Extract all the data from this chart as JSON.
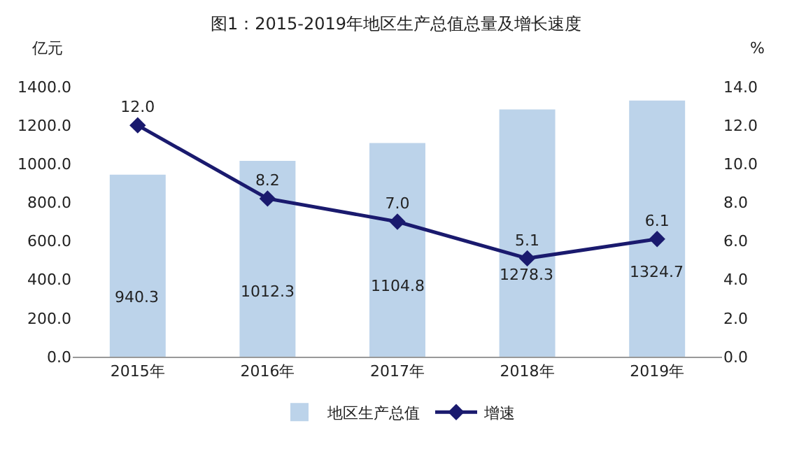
{
  "chart_data": {
    "type": "bar",
    "title": "图1：2015-2019年地区生产总值总量及增长速度",
    "categories": [
      "2015年",
      "2016年",
      "2017年",
      "2018年",
      "2019年"
    ],
    "series": [
      {
        "name": "地区生产总值",
        "color": "#bcd3ea",
        "values": [
          940.3,
          1012.3,
          1104.8,
          1278.3,
          1324.7
        ],
        "value_labels": [
          "940.3",
          "1012.3",
          "1104.8",
          "1278.3",
          "1324.7"
        ]
      },
      {
        "name": "增速",
        "type": "line",
        "axis": "y2",
        "color": "#1a1a6e",
        "marker": "diamond",
        "values": [
          12.0,
          8.2,
          7.0,
          5.1,
          6.1
        ],
        "value_labels": [
          "12.0",
          "8.2",
          "7.0",
          "5.1",
          "6.1"
        ]
      }
    ],
    "ylabel": "亿元",
    "y2label": "%",
    "ylim": [
      0,
      1400
    ],
    "yticks": [
      {
        "value": 0,
        "label": "0.0"
      },
      {
        "value": 200,
        "label": "200.0"
      },
      {
        "value": 400,
        "label": "400.0"
      },
      {
        "value": 600,
        "label": "600.0"
      },
      {
        "value": 800,
        "label": "800.0"
      },
      {
        "value": 1000,
        "label": "1000.0"
      },
      {
        "value": 1200,
        "label": "1200.0"
      },
      {
        "value": 1400,
        "label": "1400.0"
      }
    ],
    "y2lim": [
      0,
      14
    ],
    "y2ticks": [
      {
        "value": 0,
        "label": "0.0"
      },
      {
        "value": 2,
        "label": "2.0"
      },
      {
        "value": 4,
        "label": "4.0"
      },
      {
        "value": 6,
        "label": "6.0"
      },
      {
        "value": 8,
        "label": "8.0"
      },
      {
        "value": 10,
        "label": "10.0"
      },
      {
        "value": 12,
        "label": "12.0"
      },
      {
        "value": 14,
        "label": "14.0"
      }
    ],
    "legend": "bottom"
  }
}
